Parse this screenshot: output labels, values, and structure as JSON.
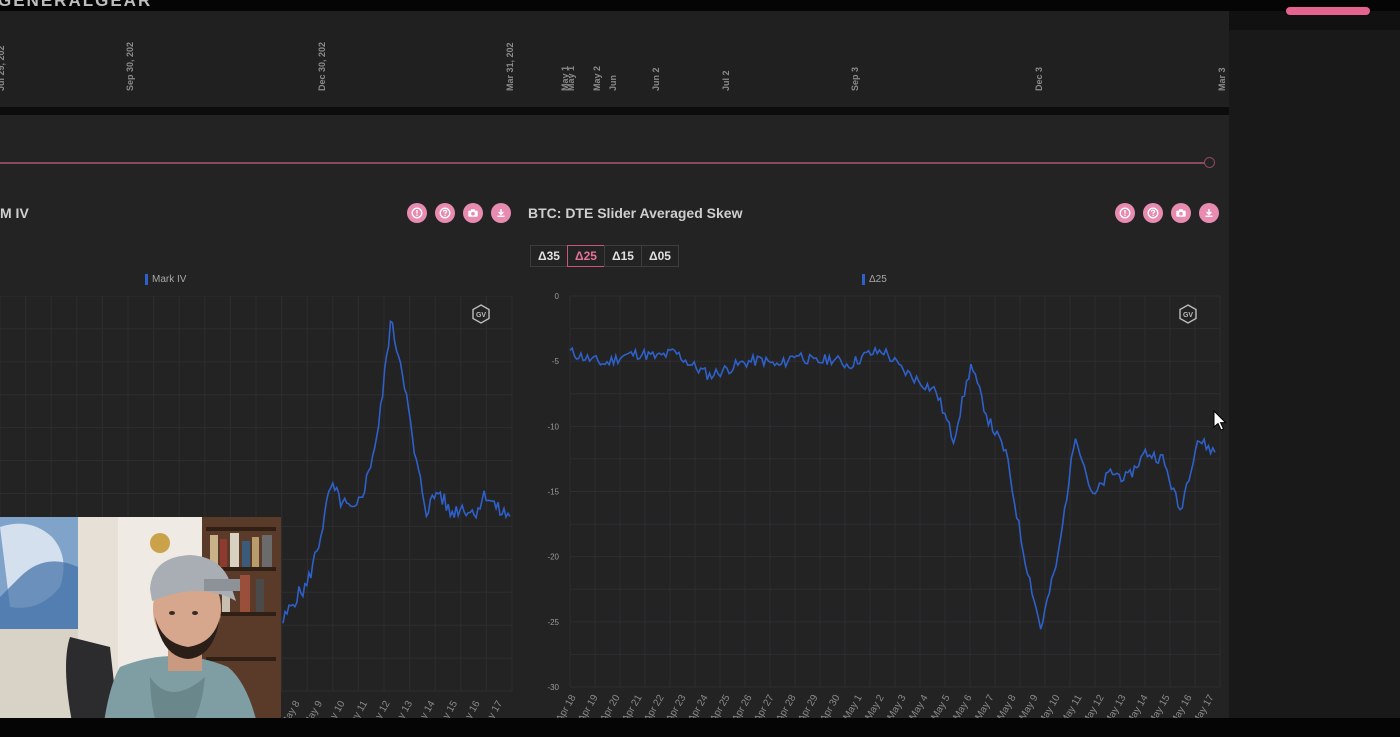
{
  "header": {
    "brand": "GENERALGEAR"
  },
  "timeline": {
    "ticks": [
      "Jul 29, 202",
      "Sep 30, 202",
      "Dec 30, 202",
      "Mar 31, 202",
      "May 1",
      "May 1",
      "May 2",
      "Jun",
      "Jun 2",
      "Jul 2",
      "Sep 3",
      "Dec 3",
      "Mar 3"
    ]
  },
  "left_panel": {
    "title": "M IV",
    "legend": "Mark IV",
    "badge": "GV"
  },
  "right_panel": {
    "title": "BTC: DTE Slider Averaged Skew",
    "legend": "Δ25",
    "badge": "GV",
    "tabs": [
      "Δ35",
      "Δ25",
      "Δ15",
      "Δ05"
    ],
    "active_tab": "Δ25"
  },
  "toolbar_icons": [
    "info-icon",
    "help-icon",
    "camera-icon",
    "download-icon"
  ],
  "colors": {
    "accent": "#e88bb0",
    "line": "#2e60c9",
    "panel": "#232324"
  },
  "chart_data": [
    {
      "type": "line",
      "title": "M IV",
      "series": [
        {
          "name": "Mark IV",
          "x": [
            "May 8",
            "May 9",
            "May 9",
            "May 10",
            "May 10",
            "May 11",
            "May 11",
            "May 12",
            "May 12",
            "May 12",
            "May 13",
            "May 13",
            "May 14",
            "May 14",
            "May 15",
            "May 15",
            "May 16",
            "May 16",
            "May 17",
            "May 17"
          ],
          "y": [
            21,
            28,
            32,
            45,
            62,
            57,
            54,
            64,
            80,
            112,
            98,
            72,
            55,
            61,
            54,
            56,
            54,
            60,
            55,
            53
          ]
        }
      ],
      "x_ticks": [
        "May 8",
        "May 9",
        "May 10",
        "May 11",
        "May 12",
        "May 13",
        "May 14",
        "May 15",
        "May 16",
        "May 17"
      ],
      "grid": true
    },
    {
      "type": "line",
      "title": "BTC: DTE Slider Averaged Skew",
      "series": [
        {
          "name": "Δ25",
          "x": [
            "Apr 18",
            "Apr 19",
            "Apr 20",
            "Apr 21",
            "Apr 22",
            "Apr 23",
            "Apr 24",
            "Apr 25",
            "Apr 26",
            "Apr 27",
            "Apr 28",
            "Apr 29",
            "Apr 30",
            "May 1",
            "May 2",
            "May 3",
            "May 4",
            "May 5",
            "May 6",
            "May 7",
            "May 8",
            "May 9",
            "May 10",
            "May 10",
            "May 11",
            "May 11",
            "May 12",
            "May 12",
            "May 13",
            "May 13",
            "May 14",
            "May 14",
            "May 15",
            "May 15",
            "May 16",
            "May 16",
            "May 17",
            "May 17"
          ],
          "y": [
            -4.3,
            -4.8,
            -5.2,
            -4.6,
            -4.4,
            -4.7,
            -4.3,
            -5.3,
            -6.1,
            -5.6,
            -5.1,
            -4.9,
            -5.4,
            -4.4,
            -5.1,
            -4.8,
            -5.3,
            -4.5,
            -4.2,
            -5.6,
            -6.5,
            -7.3,
            -11.0,
            -5.3,
            -9.5,
            -12.0,
            -19.5,
            -25.5,
            -20.0,
            -10.5,
            -15.5,
            -13.5,
            -14.0,
            -12.0,
            -12.5,
            -16.5,
            -11.0,
            -12.0
          ]
        }
      ],
      "x_ticks": [
        "Apr 18",
        "Apr 19",
        "Apr 20",
        "Apr 21",
        "Apr 22",
        "Apr 23",
        "Apr 24",
        "Apr 25",
        "Apr 26",
        "Apr 27",
        "Apr 28",
        "Apr 29",
        "Apr 30",
        "May 1",
        "May 2",
        "May 3",
        "May 4",
        "May 5",
        "May 6",
        "May 7",
        "May 8",
        "May 9",
        "May 10",
        "May 11",
        "May 12",
        "May 13",
        "May 14",
        "May 15",
        "May 16",
        "May 17"
      ],
      "y_ticks": [
        0,
        -5,
        -10,
        -15,
        -20,
        -25,
        -30
      ],
      "ylim": [
        -30,
        0
      ],
      "grid": true
    }
  ]
}
